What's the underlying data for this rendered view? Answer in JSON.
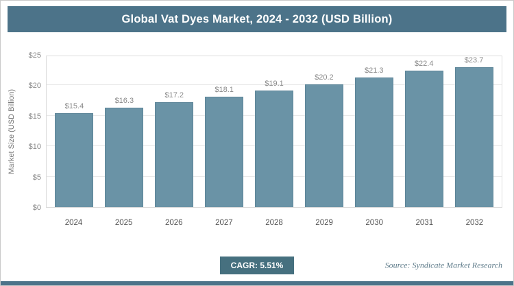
{
  "title_bar": {
    "title": "Global Vat Dyes Market, 2024 - 2032 (USD Billion)"
  },
  "chart_data": {
    "type": "bar",
    "title": "Global Vat Dyes Market, 2024 - 2032 (USD Billion)",
    "categories": [
      "2024",
      "2025",
      "2026",
      "2027",
      "2028",
      "2029",
      "2030",
      "2031",
      "2032"
    ],
    "values": [
      15.4,
      16.3,
      17.2,
      18.1,
      19.1,
      20.2,
      21.3,
      22.4,
      23.7
    ],
    "value_labels": [
      "$15.4",
      "$16.3",
      "$17.2",
      "$18.1",
      "$19.1",
      "$20.2",
      "$21.3",
      "$22.4",
      "$23.7"
    ],
    "xlabel": "",
    "ylabel": "Market Size (USD Billion)",
    "ylim": [
      0,
      25
    ],
    "yticks": [
      0,
      5,
      10,
      15,
      20,
      25
    ],
    "ytick_labels": [
      "$0",
      "$5",
      "$10",
      "$15",
      "$20",
      "$25"
    ],
    "grid": true,
    "legend": "none",
    "bar_color": "#6a93a6"
  },
  "footer": {
    "cagr_label": "CAGR: 5.51%",
    "source": "Source: Syndicate Market Research"
  },
  "colors": {
    "accent": "#4c7389",
    "bar": "#6a93a6",
    "bar_border": "#5d8598"
  }
}
